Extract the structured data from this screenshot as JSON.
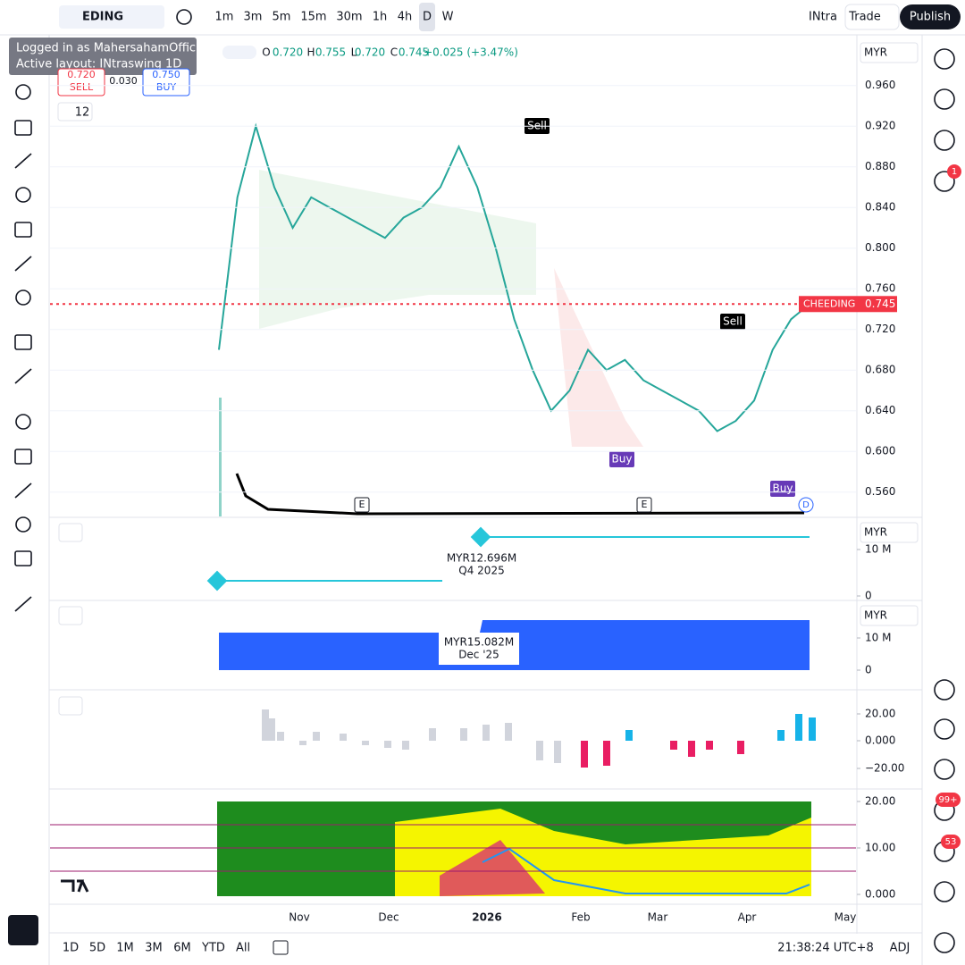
{
  "toolbar": {
    "symbol": "EDING",
    "intervals": [
      "1m",
      "3m",
      "5m",
      "15m",
      "30m",
      "1h",
      "4h",
      "D",
      "W"
    ],
    "layout": "INtra",
    "trade": "Trade",
    "publish": "Publish"
  },
  "tooltip": {
    "line1": "Logged in as MahersahamOfficial",
    "line2": "Active layout: INtraswing 1D"
  },
  "legend": {
    "o_label": "O",
    "o": "0.720",
    "h_label": "H",
    "h": "0.755",
    "l_label": "L",
    "l": "0.720",
    "c_label": "C",
    "c": "0.745",
    "change": "+0.025 (+3.47%)"
  },
  "trade_box": {
    "sell": "0.720",
    "sell_label": "SELL",
    "spread": "0.030",
    "buy": "0.750",
    "buy_label": "BUY"
  },
  "indicator_count": "12",
  "price_chart": {
    "type": "line",
    "currency": "MYR",
    "ylim": [
      0.536,
      1.009
    ],
    "yticks": [
      {
        "value": 0.96,
        "label": "0.960"
      },
      {
        "value": 0.92,
        "label": "0.920"
      },
      {
        "value": 0.88,
        "label": "0.880"
      },
      {
        "value": 0.84,
        "label": "0.840"
      },
      {
        "value": 0.8,
        "label": "0.800"
      },
      {
        "value": 0.76,
        "label": "0.760"
      },
      {
        "value": 0.72,
        "label": "0.720"
      },
      {
        "value": 0.68,
        "label": "0.680"
      },
      {
        "value": 0.64,
        "label": "0.640"
      },
      {
        "value": 0.6,
        "label": "0.600"
      },
      {
        "value": 0.56,
        "label": "0.560"
      }
    ],
    "closes": [
      0.7,
      0.85,
      0.92,
      0.86,
      0.82,
      0.85,
      0.84,
      0.83,
      0.82,
      0.81,
      0.83,
      0.84,
      0.86,
      0.9,
      0.86,
      0.8,
      0.73,
      0.68,
      0.64,
      0.66,
      0.7,
      0.68,
      0.69,
      0.67,
      0.66,
      0.65,
      0.64,
      0.62,
      0.63,
      0.65,
      0.7,
      0.73,
      0.745
    ],
    "last_name": "CHEEDING",
    "last_label": "0.745",
    "signals": [
      "Sell",
      "Sell",
      "Buy",
      "Buy"
    ],
    "events": [
      "E",
      "E"
    ],
    "dividend": "D"
  },
  "panel2": {
    "currency": "MYR",
    "yticks": [
      {
        "value": 10000000,
        "label": "10 M"
      },
      0
    ],
    "tooltip_value": "MYR12.696M",
    "tooltip_period": "Q4 2025"
  },
  "panel3": {
    "currency": "MYR",
    "yticks": [
      {
        "value": 10000000,
        "label": "10 M"
      },
      0
    ],
    "tooltip_value": "MYR15.082M",
    "tooltip_period": "Dec '25"
  },
  "panel4": {
    "yticks": [
      {
        "value": 20,
        "label": "20.00"
      },
      {
        "value": 0,
        "label": "0.000"
      },
      {
        "value": -20,
        "label": "−20.00"
      }
    ]
  },
  "panel5": {
    "yticks": [
      {
        "value": 20,
        "label": "20.00"
      },
      {
        "value": 10,
        "label": "10.00"
      },
      {
        "value": 0,
        "label": "0.000"
      }
    ]
  },
  "time_axis": [
    "Nov",
    "Dec",
    "2026",
    "Feb",
    "Mar",
    "Apr",
    "May"
  ],
  "ranges": [
    "1D",
    "5D",
    "1M",
    "3M",
    "6M",
    "YTD",
    "All"
  ],
  "clock": "21:38:24 UTC+8",
  "adj": "ADJ",
  "badges": [
    "1",
    "99+",
    "53"
  ]
}
